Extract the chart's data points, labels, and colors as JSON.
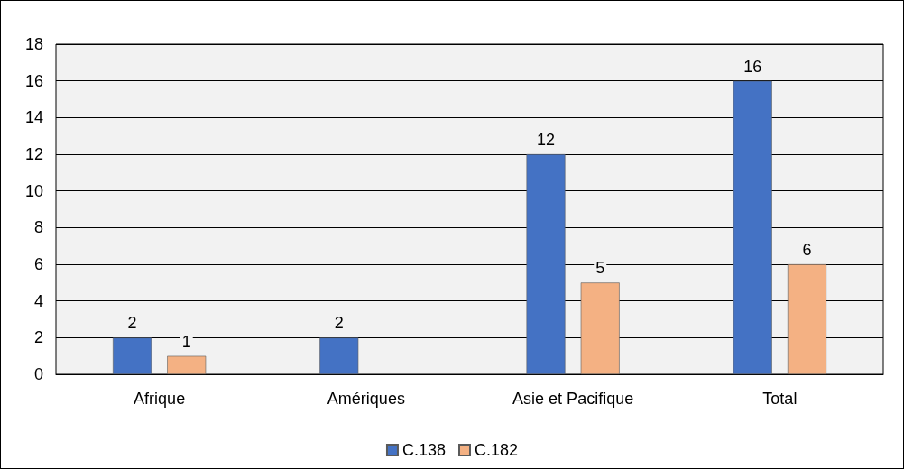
{
  "chart_data": {
    "type": "bar",
    "categories": [
      "Afrique",
      "Amériques",
      "Asie et Pacifique",
      "Total"
    ],
    "series": [
      {
        "name": "C.138",
        "color": "#4472c4",
        "values": [
          2,
          2,
          12,
          16
        ]
      },
      {
        "name": "C.182",
        "color": "#f4b183",
        "values": [
          1,
          null,
          5,
          6
        ]
      }
    ],
    "ylim": [
      0,
      18
    ],
    "yticks": [
      0,
      2,
      4,
      6,
      8,
      10,
      12,
      14,
      16,
      18
    ],
    "grid": "y",
    "legend": "bottom",
    "data_labels": true
  }
}
